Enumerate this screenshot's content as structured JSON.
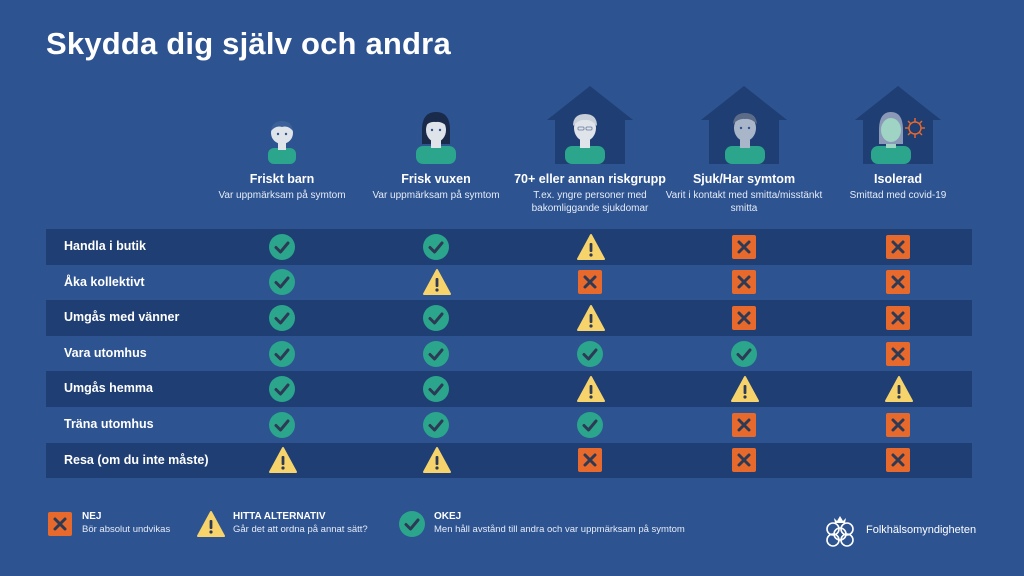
{
  "title": "Skydda dig själv och andra",
  "columns": [
    {
      "title": "Friskt barn",
      "subtitle": "Var uppmärksam på symtom"
    },
    {
      "title": "Frisk vuxen",
      "subtitle": "Var uppmärksam på symtom"
    },
    {
      "title": "70+ eller annan riskgrupp",
      "subtitle": "T.ex. yngre personer med bakomliggande sjukdomar"
    },
    {
      "title": "Sjuk/Har symtom",
      "subtitle": "Varit i kontakt med smitta/misstänkt smitta"
    },
    {
      "title": "Isolerad",
      "subtitle": "Smittad med covid-19"
    }
  ],
  "rows": [
    {
      "label": "Handla i butik",
      "values": [
        "okej",
        "okej",
        "hitta",
        "nej",
        "nej"
      ]
    },
    {
      "label": "Åka kollektivt",
      "values": [
        "okej",
        "hitta",
        "nej",
        "nej",
        "nej"
      ]
    },
    {
      "label": "Umgås med vänner",
      "values": [
        "okej",
        "okej",
        "hitta",
        "nej",
        "nej"
      ]
    },
    {
      "label": "Vara utomhus",
      "values": [
        "okej",
        "okej",
        "okej",
        "okej",
        "nej"
      ]
    },
    {
      "label": "Umgås hemma",
      "values": [
        "okej",
        "okej",
        "hitta",
        "hitta",
        "hitta"
      ]
    },
    {
      "label": "Träna utomhus",
      "values": [
        "okej",
        "okej",
        "okej",
        "nej",
        "nej"
      ]
    },
    {
      "label": "Resa (om du inte måste)",
      "values": [
        "hitta",
        "hitta",
        "nej",
        "nej",
        "nej"
      ]
    }
  ],
  "legend": {
    "nej": {
      "title": "NEJ",
      "desc": "Bör absolut undvikas"
    },
    "hitta": {
      "title": "HITTA ALTERNATIV",
      "desc": "Går det att ordna på annat sätt?"
    },
    "okej": {
      "title": "OKEJ",
      "desc": "Men håll avstånd till andra och var uppmärksam på symtom"
    }
  },
  "logo_text": "Folkhälsomyndigheten",
  "colors": {
    "background": "#2d5391",
    "row_dark": "#1f3e73",
    "nej": "#e8692c",
    "hitta": "#f6d36b",
    "okej": "#2ba58c",
    "house": "#1f3e73"
  }
}
